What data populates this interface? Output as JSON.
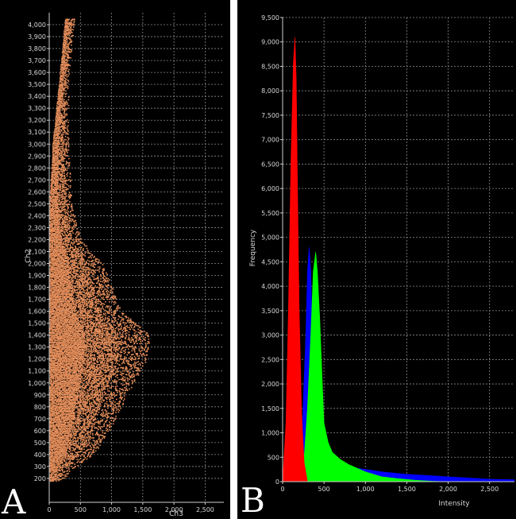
{
  "chart_data": [
    {
      "id": "A",
      "type": "scatter",
      "panel_label": "A",
      "xlabel": "Ch3",
      "ylabel": "Ch2",
      "xlim": [
        0,
        2800
      ],
      "ylim": [
        0,
        4100
      ],
      "x_ticks": [
        0,
        500,
        1000,
        1500,
        2000,
        2500
      ],
      "x_tick_labels": [
        "0",
        "500",
        "1,000",
        "1,500",
        "2,000",
        "2,500"
      ],
      "y_ticks": [
        200,
        300,
        400,
        500,
        600,
        700,
        800,
        900,
        1000,
        1100,
        1200,
        1300,
        1400,
        1500,
        1600,
        1700,
        1800,
        1900,
        2000,
        2100,
        2200,
        2300,
        2400,
        2500,
        2600,
        2700,
        2800,
        2900,
        3000,
        3100,
        3200,
        3300,
        3400,
        3500,
        3600,
        3700,
        3800,
        3900,
        4000
      ],
      "y_tick_labels": [
        "200",
        "300",
        "400",
        "500",
        "600",
        "700",
        "800",
        "900",
        "1,000",
        "1,100",
        "1,200",
        "1,300",
        "1,400",
        "1,500",
        "1,600",
        "1,700",
        "1,800",
        "1,900",
        "2,000",
        "2,100",
        "2,200",
        "2,300",
        "2,400",
        "2,500",
        "2,600",
        "2,700",
        "2,800",
        "2,900",
        "3,000",
        "3,100",
        "3,200",
        "3,300",
        "3,400",
        "3,500",
        "3,600",
        "3,700",
        "3,800",
        "3,900",
        "4,000"
      ],
      "grid": true,
      "point_color": "#e8905c",
      "density_envelope": [
        {
          "y": 180,
          "x_min": 0,
          "x_max": 200
        },
        {
          "y": 300,
          "x_min": 0,
          "x_max": 420
        },
        {
          "y": 400,
          "x_min": 0,
          "x_max": 700
        },
        {
          "y": 600,
          "x_min": 0,
          "x_max": 950
        },
        {
          "y": 800,
          "x_min": 0,
          "x_max": 1150
        },
        {
          "y": 1000,
          "x_min": 0,
          "x_max": 1350
        },
        {
          "y": 1200,
          "x_min": 0,
          "x_max": 1550
        },
        {
          "y": 1400,
          "x_min": 0,
          "x_max": 1600
        },
        {
          "y": 1600,
          "x_min": 0,
          "x_max": 1150
        },
        {
          "y": 1800,
          "x_min": 0,
          "x_max": 1000
        },
        {
          "y": 2000,
          "x_min": 0,
          "x_max": 850
        },
        {
          "y": 2200,
          "x_min": 0,
          "x_max": 500
        },
        {
          "y": 2500,
          "x_min": 0,
          "x_max": 350
        },
        {
          "y": 3000,
          "x_min": 50,
          "x_max": 300
        },
        {
          "y": 3500,
          "x_min": 150,
          "x_max": 300
        },
        {
          "y": 4050,
          "x_min": 250,
          "x_max": 400
        }
      ]
    },
    {
      "id": "B",
      "type": "area",
      "panel_label": "B",
      "xlabel": "Intensity",
      "ylabel": "Frequency",
      "xlim": [
        0,
        2800
      ],
      "ylim": [
        0,
        9500
      ],
      "x_ticks": [
        0,
        500,
        1000,
        1500,
        2000,
        2500
      ],
      "x_tick_labels": [
        "0",
        "500",
        "1,000",
        "1,500",
        "2,000",
        "2,500"
      ],
      "y_ticks": [
        0,
        500,
        1000,
        1500,
        2000,
        2500,
        3000,
        3500,
        4000,
        4500,
        5000,
        5500,
        6000,
        6500,
        7000,
        7500,
        8000,
        8500,
        9000,
        9500
      ],
      "y_tick_labels": [
        "0",
        "500",
        "1,000",
        "1,500",
        "2,000",
        "2,500",
        "3,000",
        "3,500",
        "4,000",
        "4,500",
        "5,000",
        "5,500",
        "6,000",
        "6,500",
        "7,000",
        "7,500",
        "8,000",
        "8,500",
        "9,000",
        "9,500"
      ],
      "grid": true,
      "series": [
        {
          "color": "#0000ff",
          "x": [
            0,
            150,
            240,
            280,
            300,
            320,
            340,
            360,
            400,
            450,
            500,
            600,
            800,
            1000,
            1200,
            1500,
            1800,
            2000,
            2200,
            2500,
            2800
          ],
          "values": [
            0,
            200,
            1200,
            3000,
            4300,
            4800,
            4300,
            3000,
            1500,
            800,
            550,
            400,
            300,
            250,
            200,
            150,
            120,
            100,
            80,
            50,
            40
          ]
        },
        {
          "color": "#00ff00",
          "x": [
            0,
            200,
            260,
            300,
            340,
            370,
            400,
            420,
            450,
            480,
            500,
            550,
            600,
            700,
            800,
            1000,
            1200,
            1400,
            1600,
            1800,
            2000
          ],
          "values": [
            0,
            0,
            500,
            1500,
            3000,
            4300,
            4700,
            4300,
            3300,
            2000,
            1200,
            800,
            600,
            450,
            350,
            200,
            100,
            60,
            30,
            10,
            0
          ]
        },
        {
          "color": "#ff0000",
          "x": [
            0,
            40,
            70,
            100,
            130,
            150,
            165,
            180,
            200,
            230,
            260,
            300
          ],
          "values": [
            0,
            1200,
            3500,
            6500,
            8600,
            9100,
            8200,
            6000,
            3500,
            1400,
            400,
            0
          ]
        }
      ]
    }
  ]
}
